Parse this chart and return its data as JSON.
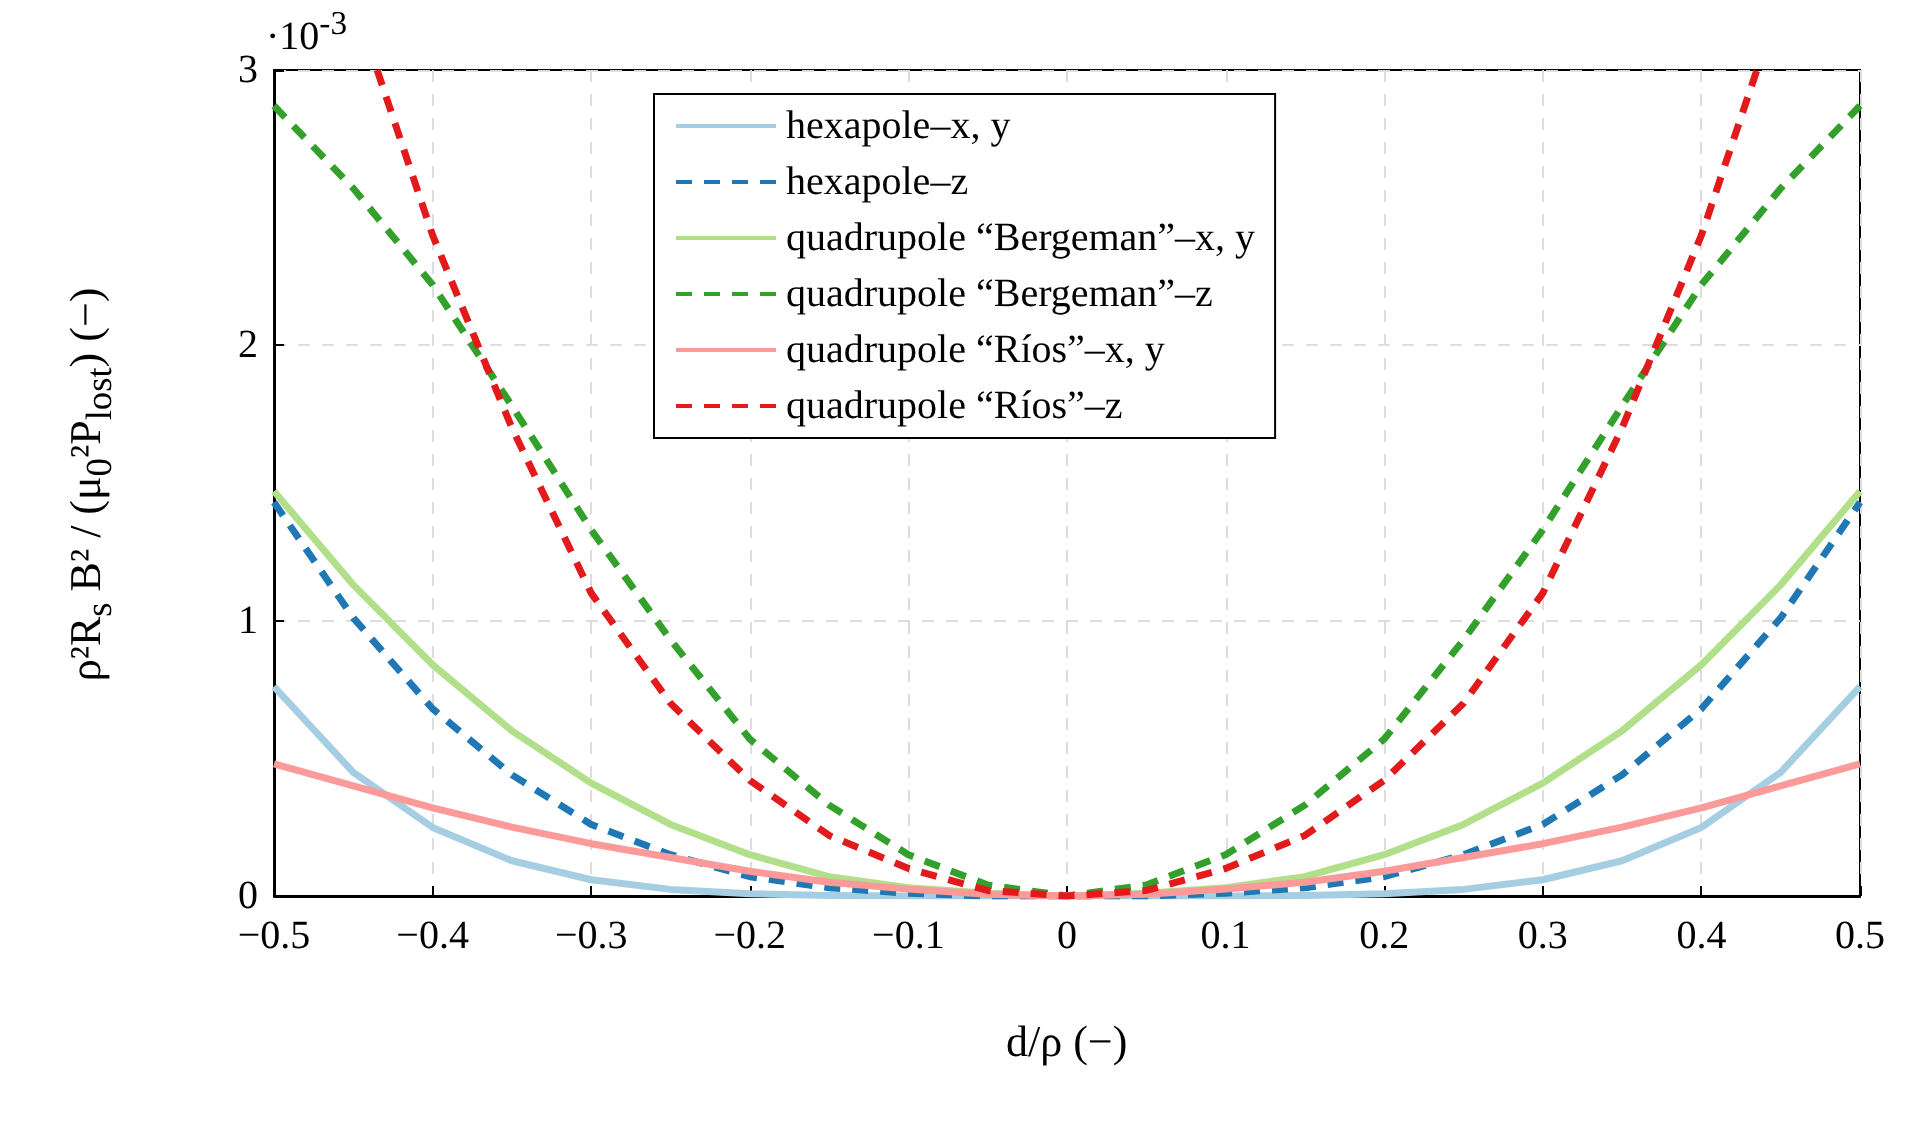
{
  "chart_data": {
    "type": "line",
    "xlabel": "d/ρ   (−)",
    "ylabel": "ρ²R$_{s}$ B² / (μ$_{0}$²P$_{lost}$)   (−)",
    "annotations": [
      "·10$^{-3}$"
    ],
    "x": [
      -0.5,
      -0.45,
      -0.4,
      -0.35,
      -0.3,
      -0.25,
      -0.2,
      -0.15,
      -0.1,
      -0.05,
      0,
      0.05,
      0.1,
      0.15,
      0.2,
      0.25,
      0.3,
      0.35,
      0.4,
      0.45,
      0.5
    ],
    "series": [
      {
        "name": "hexapole–x, y",
        "color": "#a6cee3",
        "line_style": "solid",
        "values": [
          0.76,
          0.449,
          0.249,
          0.128,
          0.059,
          0.024,
          0.008,
          0.002,
          0,
          0,
          0,
          0,
          0,
          0.002,
          0.008,
          0.024,
          0.059,
          0.128,
          0.249,
          0.449,
          0.76
        ]
      },
      {
        "name": "hexapole–z",
        "color": "#1f78b4",
        "line_style": "dashed",
        "values": [
          1.43,
          1.01,
          0.68,
          0.44,
          0.26,
          0.15,
          0.07,
          0.03,
          0.01,
          0,
          0,
          0,
          0.01,
          0.03,
          0.07,
          0.15,
          0.26,
          0.44,
          0.68,
          1.01,
          1.43
        ]
      },
      {
        "name": "quadrupole “Bergeman”–x, y",
        "color": "#b2df8a",
        "line_style": "solid",
        "values": [
          1.47,
          1.13,
          0.84,
          0.6,
          0.41,
          0.26,
          0.15,
          0.07,
          0.03,
          0.01,
          0,
          0.01,
          0.03,
          0.07,
          0.15,
          0.26,
          0.41,
          0.6,
          0.84,
          1.13,
          1.47
        ]
      },
      {
        "name": "quadrupole “Bergeman”–z",
        "color": "#33a02c",
        "line_style": "dashed",
        "values": [
          2.87,
          2.57,
          2.22,
          1.78,
          1.33,
          0.93,
          0.57,
          0.33,
          0.15,
          0.04,
          0,
          0.04,
          0.15,
          0.33,
          0.57,
          0.93,
          1.33,
          1.78,
          2.22,
          2.57,
          2.87
        ]
      },
      {
        "name": "quadrupole “Ríos”–x, y",
        "color": "#fb9a99",
        "line_style": "solid",
        "values": [
          0.48,
          0.4,
          0.32,
          0.25,
          0.19,
          0.14,
          0.09,
          0.05,
          0.025,
          0.006,
          0,
          0.006,
          0.025,
          0.05,
          0.09,
          0.14,
          0.19,
          0.25,
          0.32,
          0.4,
          0.48
        ]
      },
      {
        "name": "quadrupole “Ríos”–z",
        "color": "#e31a1c",
        "line_style": "dashed",
        "x": [
          -0.435,
          -0.4,
          -0.35,
          -0.3,
          -0.25,
          -0.2,
          -0.15,
          -0.1,
          -0.05,
          0,
          0.05,
          0.1,
          0.15,
          0.2,
          0.25,
          0.3,
          0.35,
          0.4,
          0.435
        ],
        "values": [
          3,
          2.4,
          1.7,
          1.1,
          0.7,
          0.42,
          0.22,
          0.1,
          0.02,
          0,
          0.02,
          0.1,
          0.22,
          0.42,
          0.7,
          1.1,
          1.7,
          2.4,
          3
        ]
      }
    ],
    "xlim": [
      -0.5,
      0.5
    ],
    "xticks": [
      {
        "value": -0.5,
        "label": "−0.5"
      },
      {
        "value": -0.4,
        "label": "−0.4"
      },
      {
        "value": -0.3,
        "label": "−0.3"
      },
      {
        "value": -0.2,
        "label": "−0.2"
      },
      {
        "value": -0.1,
        "label": "−0.1"
      },
      0,
      0.1,
      0.2,
      0.3,
      0.4,
      0.5
    ],
    "ylim": [
      0,
      3
    ],
    "yticks": [
      0,
      1,
      2,
      3
    ],
    "grid": true,
    "legend": "top",
    "marker": "none"
  }
}
